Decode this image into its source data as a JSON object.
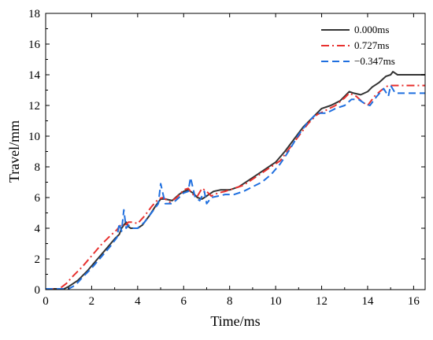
{
  "chart_data": {
    "type": "line",
    "xlabel": "Time/ms",
    "ylabel": "Travel/mm",
    "xlim": [
      0,
      16.5
    ],
    "ylim": [
      0,
      18
    ],
    "xticks": [
      0,
      2,
      4,
      6,
      8,
      10,
      12,
      14,
      16
    ],
    "yticks": [
      0,
      2,
      4,
      6,
      8,
      10,
      12,
      14,
      16,
      18
    ],
    "grid": false,
    "legend_position": "top-right",
    "series": [
      {
        "name": "0.000ms",
        "color": "#333333",
        "dash": "solid",
        "x": [
          0,
          0.8,
          1.0,
          1.4,
          1.8,
          2.2,
          2.6,
          3.0,
          3.2,
          3.3,
          3.4,
          3.5,
          3.6,
          3.7,
          3.8,
          4.0,
          4.2,
          4.5,
          4.8,
          5.0,
          5.2,
          5.5,
          5.8,
          6.0,
          6.2,
          6.4,
          6.6,
          6.8,
          7.0,
          7.3,
          7.6,
          8.0,
          8.4,
          8.8,
          9.2,
          9.6,
          10.0,
          10.4,
          10.8,
          11.2,
          11.6,
          12.0,
          12.4,
          12.8,
          13.0,
          13.2,
          13.4,
          13.7,
          14.0,
          14.2,
          14.5,
          14.8,
          15.0,
          15.1,
          15.3,
          15.6,
          16.0,
          16.5
        ],
        "y": [
          0.05,
          0.05,
          0.2,
          0.6,
          1.2,
          1.9,
          2.6,
          3.3,
          3.6,
          4.0,
          4.2,
          4.4,
          4.1,
          4.0,
          4.0,
          4.0,
          4.2,
          4.8,
          5.5,
          5.9,
          5.9,
          5.8,
          6.2,
          6.4,
          6.5,
          6.3,
          6.0,
          5.9,
          6.1,
          6.4,
          6.5,
          6.5,
          6.7,
          7.1,
          7.5,
          7.9,
          8.3,
          9.0,
          9.8,
          10.6,
          11.2,
          11.8,
          12.0,
          12.3,
          12.6,
          12.9,
          12.8,
          12.7,
          12.9,
          13.2,
          13.5,
          13.9,
          14.0,
          14.2,
          14.0,
          14.0,
          14.0,
          14.0
        ]
      },
      {
        "name": "0.727ms",
        "color": "#e8312f",
        "dash": "10,4,2,4",
        "x": [
          0,
          0.6,
          0.9,
          1.2,
          1.6,
          2.0,
          2.4,
          2.8,
          3.1,
          3.3,
          3.4,
          3.6,
          3.8,
          4.0,
          4.3,
          4.6,
          4.9,
          5.1,
          5.4,
          5.7,
          6.0,
          6.2,
          6.4,
          6.6,
          6.8,
          7.0,
          7.2,
          7.5,
          7.8,
          8.2,
          8.6,
          9.0,
          9.4,
          9.8,
          10.2,
          10.6,
          11.0,
          11.4,
          11.8,
          12.2,
          12.6,
          13.0,
          13.2,
          13.5,
          13.8,
          14.0,
          14.3,
          14.6,
          14.9,
          15.2,
          15.5,
          16.0,
          16.5
        ],
        "y": [
          0.05,
          0.05,
          0.4,
          0.9,
          1.5,
          2.2,
          2.9,
          3.5,
          3.9,
          4.3,
          4.1,
          4.4,
          4.4,
          4.3,
          4.8,
          5.4,
          5.9,
          6.0,
          5.7,
          6.0,
          6.5,
          6.6,
          6.2,
          6.1,
          6.6,
          6.4,
          6.1,
          6.3,
          6.4,
          6.6,
          6.8,
          7.2,
          7.6,
          8.0,
          8.4,
          9.2,
          10.0,
          10.8,
          11.4,
          11.7,
          12.0,
          12.5,
          12.8,
          12.6,
          12.2,
          12.0,
          12.6,
          13.0,
          13.3,
          13.3,
          13.3,
          13.3,
          13.3
        ]
      },
      {
        "name": "−0.347ms",
        "color": "#1f6fdf",
        "dash": "9,5",
        "x": [
          0,
          1.0,
          1.3,
          1.6,
          2.0,
          2.4,
          2.8,
          3.1,
          3.2,
          3.3,
          3.4,
          3.5,
          3.6,
          3.8,
          4.0,
          4.3,
          4.6,
          4.9,
          5.0,
          5.2,
          5.5,
          5.8,
          6.0,
          6.2,
          6.3,
          6.5,
          6.7,
          6.9,
          7.0,
          7.2,
          7.5,
          7.8,
          8.2,
          8.6,
          9.0,
          9.4,
          9.8,
          10.2,
          10.6,
          11.0,
          11.4,
          11.8,
          12.2,
          12.6,
          13.0,
          13.3,
          13.6,
          13.9,
          14.1,
          14.4,
          14.7,
          14.9,
          15.0,
          15.2,
          15.5,
          16.0,
          16.5
        ],
        "y": [
          0.05,
          0.05,
          0.3,
          0.8,
          1.4,
          2.1,
          2.8,
          3.4,
          4.3,
          3.8,
          5.2,
          4.0,
          4.2,
          4.0,
          4.0,
          4.4,
          5.0,
          5.6,
          6.9,
          5.6,
          5.6,
          6.0,
          6.3,
          6.4,
          7.3,
          6.0,
          5.8,
          6.4,
          5.6,
          6.0,
          6.1,
          6.2,
          6.2,
          6.4,
          6.7,
          7.0,
          7.5,
          8.2,
          9.1,
          10.1,
          10.9,
          11.5,
          11.5,
          11.8,
          12.0,
          12.4,
          12.4,
          12.1,
          12.0,
          12.6,
          13.1,
          12.6,
          13.3,
          12.8,
          12.8,
          12.8,
          12.8
        ]
      }
    ]
  }
}
